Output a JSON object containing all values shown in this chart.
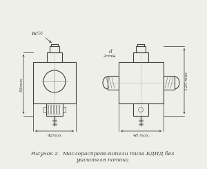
{
  "title_line1": "Рисунок 2.  Маслораспределители типа БДИД без",
  "title_line2": "указателя потока",
  "bg_color": "#efefea",
  "line_color": "#404040",
  "text_color": "#404040",
  "annotation_Rc": "Rc½",
  "annotation_d": "d",
  "annotation_2cml": "2cml.",
  "dim_83": "83max",
  "dim_42": "42max",
  "dim_48": "48 max.",
  "dim_120": "120 max"
}
